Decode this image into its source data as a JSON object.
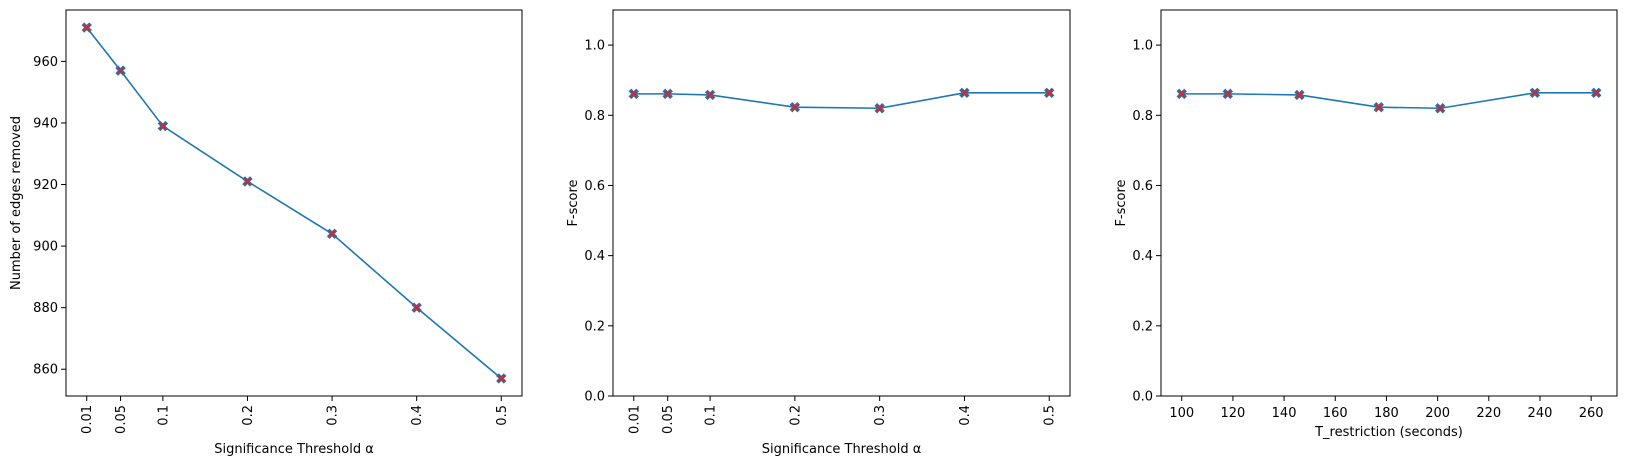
{
  "colors": {
    "line": "#1f77b4",
    "marker": "#d62728",
    "axes": "#000000",
    "background": "#ffffff"
  },
  "chart_data": [
    {
      "type": "line",
      "title": "",
      "xlabel": "Significance Threshold α",
      "ylabel": "Number of edges removed",
      "x": [
        0.01,
        0.05,
        0.1,
        0.2,
        0.3,
        0.4,
        0.5
      ],
      "y": [
        971,
        957,
        939,
        921,
        904,
        880,
        857
      ],
      "xticks": [
        0.01,
        0.05,
        0.1,
        0.2,
        0.3,
        0.4,
        0.5
      ],
      "xtick_labels": [
        "0.01",
        "0.05",
        "0.1",
        "0.2",
        "0.3",
        "0.4",
        "0.5"
      ],
      "xtick_rotation": "vertical",
      "yticks": [
        860,
        880,
        900,
        920,
        940,
        960
      ],
      "ytick_labels": [
        "860",
        "880",
        "900",
        "920",
        "940",
        "960"
      ],
      "xlim": [
        -0.0145,
        0.5245
      ],
      "ylim": [
        851.3,
        976.7
      ],
      "marker": "X",
      "grid": false,
      "legend": false
    },
    {
      "type": "line",
      "title": "",
      "xlabel": "Significance Threshold α",
      "ylabel": "F-score",
      "x": [
        0.01,
        0.05,
        0.1,
        0.2,
        0.3,
        0.4,
        0.5
      ],
      "y": [
        0.861,
        0.861,
        0.858,
        0.823,
        0.82,
        0.864,
        0.864
      ],
      "xticks": [
        0.01,
        0.05,
        0.1,
        0.2,
        0.3,
        0.4,
        0.5
      ],
      "xtick_labels": [
        "0.01",
        "0.05",
        "0.1",
        "0.2",
        "0.3",
        "0.4",
        "0.5"
      ],
      "xtick_rotation": "vertical",
      "yticks": [
        0.0,
        0.2,
        0.4,
        0.6,
        0.8,
        1.0
      ],
      "ytick_labels": [
        "0.0",
        "0.2",
        "0.4",
        "0.6",
        "0.8",
        "1.0"
      ],
      "xlim": [
        -0.0145,
        0.5245
      ],
      "ylim": [
        0.0,
        1.1
      ],
      "marker": "X",
      "grid": false,
      "legend": false
    },
    {
      "type": "line",
      "title": "",
      "xlabel": "T_restriction (seconds)",
      "ylabel": "F-score",
      "x": [
        100,
        118,
        146,
        177,
        201,
        238,
        262
      ],
      "y": [
        0.861,
        0.861,
        0.858,
        0.823,
        0.82,
        0.864,
        0.864
      ],
      "xticks": [
        100,
        120,
        140,
        160,
        180,
        200,
        220,
        240,
        260
      ],
      "xtick_labels": [
        "100",
        "120",
        "140",
        "160",
        "180",
        "200",
        "220",
        "240",
        "260"
      ],
      "xtick_rotation": "horizontal",
      "yticks": [
        0.0,
        0.2,
        0.4,
        0.6,
        0.8,
        1.0
      ],
      "ytick_labels": [
        "0.0",
        "0.2",
        "0.4",
        "0.6",
        "0.8",
        "1.0"
      ],
      "xlim": [
        91.9,
        270.1
      ],
      "ylim": [
        0.0,
        1.1
      ],
      "marker": "X",
      "grid": false,
      "legend": false
    }
  ]
}
